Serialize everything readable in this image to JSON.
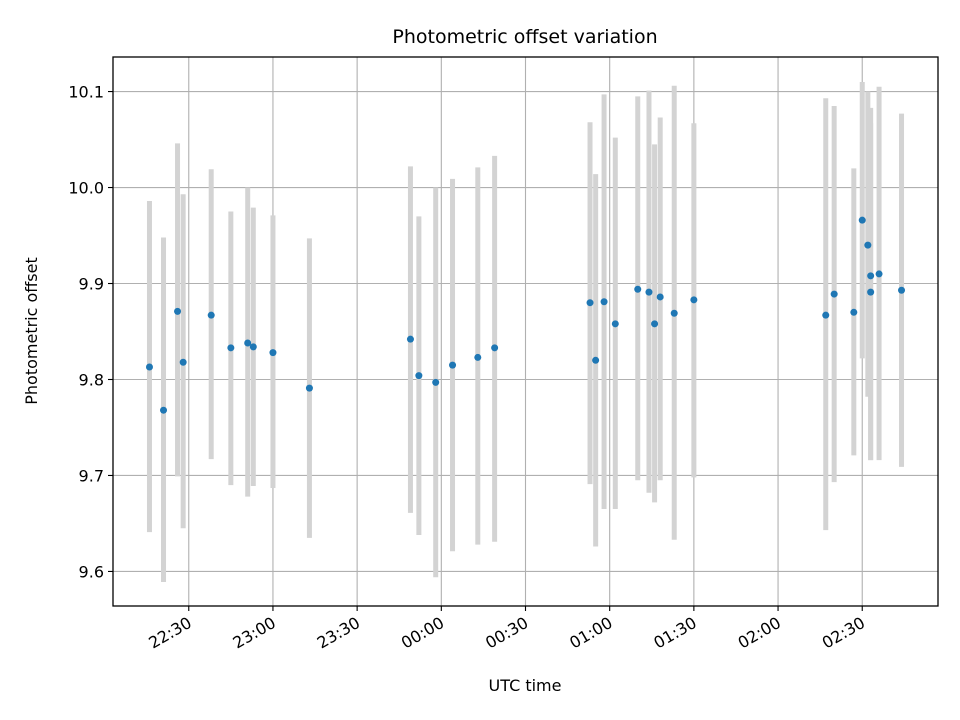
{
  "chart_data": {
    "type": "scatter",
    "title": "Photometric offset variation",
    "xlabel": "UTC time",
    "ylabel": "Photometric offset",
    "x_unit": "UTC HH:MM",
    "xlim": [
      "22:03",
      "02:57"
    ],
    "ylim": [
      9.564,
      10.136
    ],
    "xticks": [
      "22:30",
      "23:00",
      "23:30",
      "00:00",
      "00:30",
      "01:00",
      "01:30",
      "02:00",
      "02:30"
    ],
    "yticks": [
      9.6,
      9.7,
      9.8,
      9.9,
      10.0,
      10.1
    ],
    "grid": true,
    "colors": {
      "points": "#1f77b4",
      "errorbars": "#d3d3d3",
      "grid": "#b0b0b0"
    },
    "points": [
      {
        "x": "22:16",
        "y": 9.813,
        "ylow": 9.641,
        "yhigh": 9.986
      },
      {
        "x": "22:21",
        "y": 9.768,
        "ylow": 9.589,
        "yhigh": 9.948
      },
      {
        "x": "22:26",
        "y": 9.871,
        "ylow": 9.699,
        "yhigh": 10.046
      },
      {
        "x": "22:28",
        "y": 9.818,
        "ylow": 9.645,
        "yhigh": 9.993
      },
      {
        "x": "22:38",
        "y": 9.867,
        "ylow": 9.717,
        "yhigh": 10.019
      },
      {
        "x": "22:45",
        "y": 9.833,
        "ylow": 9.69,
        "yhigh": 9.975
      },
      {
        "x": "22:51",
        "y": 9.838,
        "ylow": 9.678,
        "yhigh": 10.0
      },
      {
        "x": "22:53",
        "y": 9.834,
        "ylow": 9.689,
        "yhigh": 9.979
      },
      {
        "x": "23:00",
        "y": 9.828,
        "ylow": 9.687,
        "yhigh": 9.971
      },
      {
        "x": "23:13",
        "y": 9.791,
        "ylow": 9.635,
        "yhigh": 9.947
      },
      {
        "x": "23:49",
        "y": 9.842,
        "ylow": 9.661,
        "yhigh": 10.022
      },
      {
        "x": "23:52",
        "y": 9.804,
        "ylow": 9.638,
        "yhigh": 9.97
      },
      {
        "x": "23:58",
        "y": 9.797,
        "ylow": 9.594,
        "yhigh": 10.0
      },
      {
        "x": "00:04",
        "y": 9.815,
        "ylow": 9.621,
        "yhigh": 10.009
      },
      {
        "x": "00:13",
        "y": 9.823,
        "ylow": 9.628,
        "yhigh": 10.021
      },
      {
        "x": "00:19",
        "y": 9.833,
        "ylow": 9.631,
        "yhigh": 10.033
      },
      {
        "x": "00:53",
        "y": 9.88,
        "ylow": 9.691,
        "yhigh": 10.068
      },
      {
        "x": "00:55",
        "y": 9.82,
        "ylow": 9.626,
        "yhigh": 10.014
      },
      {
        "x": "00:58",
        "y": 9.881,
        "ylow": 9.665,
        "yhigh": 10.097
      },
      {
        "x": "01:02",
        "y": 9.858,
        "ylow": 9.665,
        "yhigh": 10.052
      },
      {
        "x": "01:10",
        "y": 9.894,
        "ylow": 9.695,
        "yhigh": 10.095
      },
      {
        "x": "01:14",
        "y": 9.891,
        "ylow": 9.682,
        "yhigh": 10.101
      },
      {
        "x": "01:16",
        "y": 9.858,
        "ylow": 9.672,
        "yhigh": 10.045
      },
      {
        "x": "01:18",
        "y": 9.886,
        "ylow": 9.695,
        "yhigh": 10.073
      },
      {
        "x": "01:23",
        "y": 9.869,
        "ylow": 9.633,
        "yhigh": 10.106
      },
      {
        "x": "01:30",
        "y": 9.883,
        "ylow": 9.698,
        "yhigh": 10.067
      },
      {
        "x": "02:17",
        "y": 9.867,
        "ylow": 9.643,
        "yhigh": 10.093
      },
      {
        "x": "02:20",
        "y": 9.889,
        "ylow": 9.693,
        "yhigh": 10.085
      },
      {
        "x": "02:27",
        "y": 9.87,
        "ylow": 9.721,
        "yhigh": 10.02
      },
      {
        "x": "02:30",
        "y": 9.966,
        "ylow": 9.822,
        "yhigh": 10.11
      },
      {
        "x": "02:32",
        "y": 9.94,
        "ylow": 9.782,
        "yhigh": 10.1
      },
      {
        "x": "02:33",
        "y": 9.908,
        "ylow": 9.716,
        "yhigh": 10.067
      },
      {
        "x": "02:33",
        "y": 9.891,
        "ylow": 9.716,
        "yhigh": 10.083
      },
      {
        "x": "02:36",
        "y": 9.91,
        "ylow": 9.716,
        "yhigh": 10.105
      },
      {
        "x": "02:44",
        "y": 9.893,
        "ylow": 9.709,
        "yhigh": 10.077
      }
    ]
  }
}
